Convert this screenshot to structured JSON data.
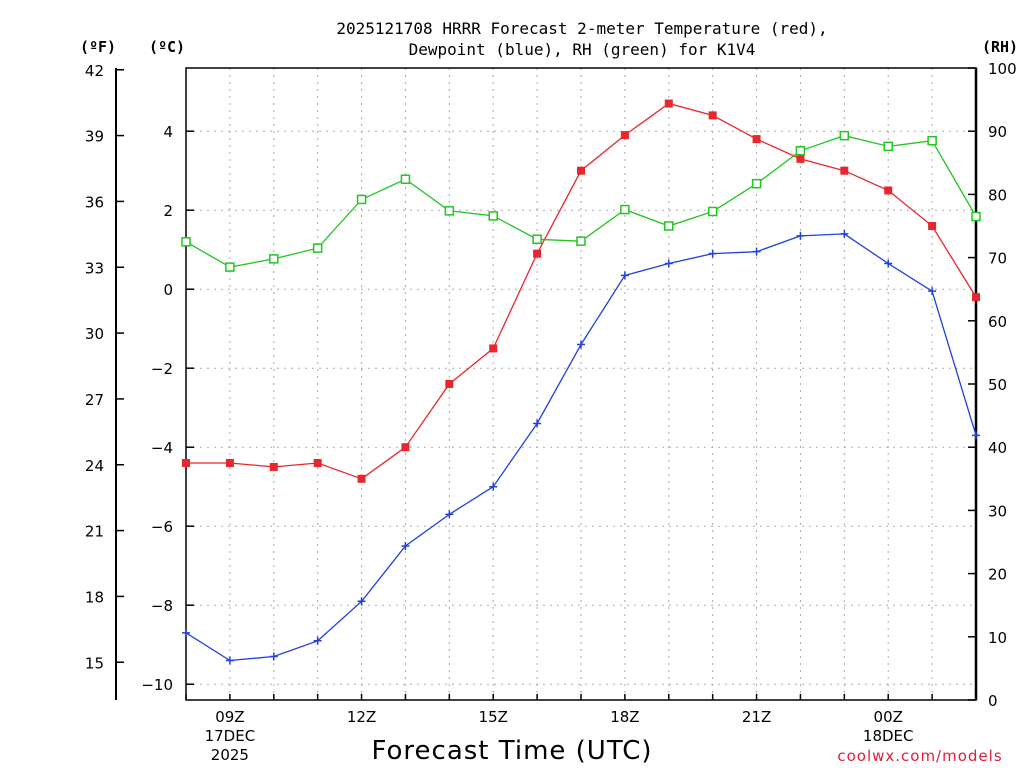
{
  "chart_data": {
    "type": "line",
    "title": [
      "2025121708 HRRR Forecast 2-meter Temperature (red),",
      "Dewpoint (blue), RH (green) for K1V4"
    ],
    "units": {
      "fahrenheit": "(ºF)",
      "celsius": "(ºC)",
      "rh": "(RH)"
    },
    "xlabel": "Forecast Time (UTC)",
    "credit": "coolwx.com/models",
    "x_hours": [
      8,
      9,
      10,
      11,
      12,
      13,
      14,
      15,
      16,
      17,
      18,
      19,
      20,
      21,
      22,
      23,
      24,
      25,
      26
    ],
    "x_ticks": [
      {
        "hour": 9,
        "lines": [
          "09Z",
          "17DEC",
          "2025"
        ]
      },
      {
        "hour": 12,
        "lines": [
          "12Z"
        ]
      },
      {
        "hour": 15,
        "lines": [
          "15Z"
        ]
      },
      {
        "hour": 18,
        "lines": [
          "18Z"
        ]
      },
      {
        "hour": 21,
        "lines": [
          "21Z"
        ]
      },
      {
        "hour": 24,
        "lines": [
          "00Z",
          "18DEC"
        ]
      }
    ],
    "celsius_axis": {
      "range": [
        -10.4,
        5.6
      ],
      "ticks": [
        -10,
        -8,
        -6,
        -4,
        -2,
        0,
        2,
        4
      ],
      "labels": [
        "−10",
        "−8",
        "−6",
        "−4",
        "−2",
        "0",
        "2",
        "4"
      ]
    },
    "fahrenheit_axis": {
      "range": [
        13.28,
        42.08
      ],
      "ticks": [
        15,
        18,
        21,
        24,
        27,
        30,
        33,
        36,
        39,
        42
      ],
      "labels": [
        "15",
        "18",
        "21",
        "24",
        "27",
        "30",
        "33",
        "36",
        "39",
        "42"
      ]
    },
    "rh_axis": {
      "range": [
        0,
        100
      ],
      "ticks": [
        0,
        10,
        20,
        30,
        40,
        50,
        60,
        70,
        80,
        90,
        100
      ],
      "labels": [
        "0",
        "10",
        "20",
        "30",
        "40",
        "50",
        "60",
        "70",
        "80",
        "90",
        "100"
      ]
    },
    "series": [
      {
        "name": "Temperature",
        "axis": "celsius",
        "color": "#e8262e",
        "marker": "filled-square",
        "values": [
          -4.4,
          -4.4,
          -4.5,
          -4.4,
          -4.8,
          -4.0,
          -2.4,
          -1.5,
          0.9,
          3.0,
          3.9,
          4.7,
          4.4,
          3.8,
          3.3,
          3.0,
          2.5,
          1.6,
          -0.2
        ]
      },
      {
        "name": "Dewpoint",
        "axis": "celsius",
        "color": "#2040e0",
        "marker": "plus",
        "values": [
          -8.7,
          -9.4,
          -9.3,
          -8.9,
          -7.9,
          -6.5,
          -5.7,
          -5.0,
          -3.4,
          -1.4,
          0.35,
          0.65,
          0.9,
          0.95,
          1.35,
          1.4,
          0.65,
          -0.05,
          -3.7
        ]
      },
      {
        "name": "RH",
        "axis": "rh",
        "color": "#22c522",
        "marker": "open-square",
        "values": [
          72.5,
          68.5,
          69.8,
          71.5,
          79.2,
          82.4,
          77.4,
          76.6,
          72.9,
          72.6,
          77.6,
          75.0,
          77.3,
          81.7,
          86.9,
          89.3,
          87.6,
          88.5,
          76.5
        ]
      }
    ],
    "grid": true,
    "legend": "none"
  }
}
